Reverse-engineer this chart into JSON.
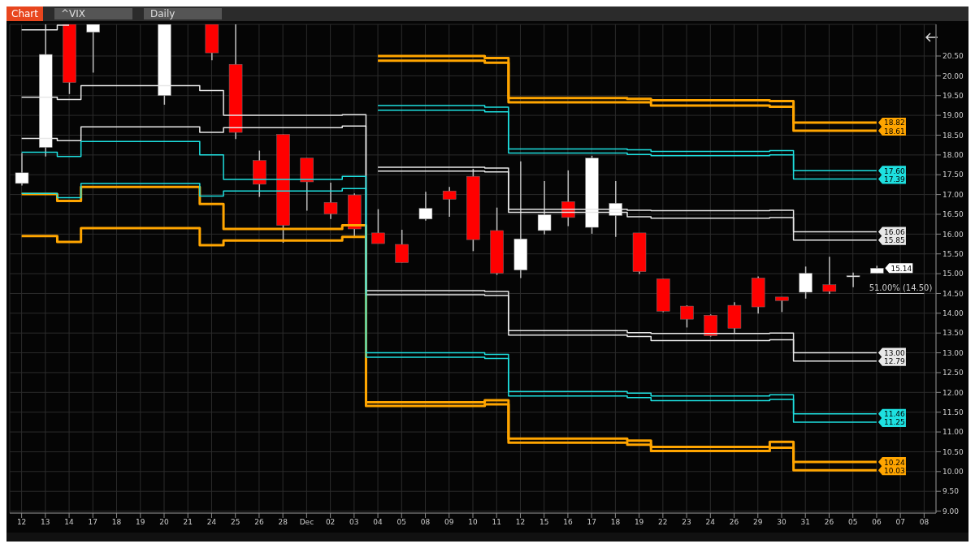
{
  "chart_data": {
    "type": "candlestick",
    "title": "^VIX",
    "subtitle": "Daily",
    "annotations": [
      "Chart"
    ],
    "ref_lines": [
      {
        "axis": "y",
        "value": 14.5,
        "label": "51.00% (14.50)",
        "color": "#cccccc"
      }
    ],
    "categories": [
      "12",
      "13",
      "14",
      "17",
      "18",
      "19",
      "20",
      "21",
      "24",
      "25",
      "26",
      "28",
      "Dec",
      "02",
      "03",
      "04",
      "05",
      "08",
      "09",
      "10",
      "11",
      "12",
      "15",
      "16",
      "17",
      "18",
      "19",
      "22",
      "23",
      "24",
      "26",
      "29",
      "30",
      "31",
      "26",
      "05",
      "06",
      "07",
      "08"
    ],
    "ohlc": [
      [
        17.28,
        18.05,
        17.23,
        17.55
      ],
      [
        18.19,
        21.3,
        17.96,
        20.54
      ],
      [
        21.3,
        21.3,
        19.54,
        19.83
      ],
      [
        21.1,
        21.3,
        20.08,
        21.3
      ],
      null,
      null,
      [
        19.5,
        21.3,
        19.27,
        21.3
      ],
      null,
      [
        21.3,
        21.3,
        20.39,
        20.58
      ],
      [
        20.29,
        21.3,
        18.4,
        18.57
      ],
      [
        17.86,
        18.11,
        16.94,
        17.26
      ],
      [
        18.52,
        18.52,
        15.78,
        16.22
      ],
      [
        17.92,
        17.92,
        16.59,
        17.32
      ],
      [
        16.8,
        17.3,
        16.38,
        16.51
      ],
      [
        16.99,
        17.03,
        15.93,
        16.13
      ],
      [
        16.03,
        16.63,
        15.76,
        15.76
      ],
      [
        15.74,
        16.11,
        15.28,
        15.28
      ],
      [
        16.38,
        17.07,
        16.34,
        16.65
      ],
      [
        17.09,
        17.19,
        16.44,
        16.88
      ],
      [
        17.46,
        17.65,
        15.57,
        15.86
      ],
      [
        16.09,
        16.67,
        14.97,
        15.01
      ],
      [
        15.09,
        17.84,
        14.89,
        15.88
      ],
      [
        16.09,
        17.34,
        15.99,
        16.49
      ],
      [
        16.82,
        17.61,
        16.2,
        16.42
      ],
      [
        16.17,
        17.98,
        16.01,
        17.92
      ],
      [
        16.47,
        17.34,
        15.93,
        16.78
      ],
      [
        16.03,
        16.03,
        14.99,
        15.05
      ],
      [
        14.87,
        14.87,
        14.03,
        14.05
      ],
      [
        14.18,
        14.2,
        13.64,
        13.85
      ],
      [
        13.95,
        13.97,
        13.41,
        13.43
      ],
      [
        14.2,
        14.28,
        13.49,
        13.62
      ],
      [
        14.89,
        14.93,
        13.99,
        14.16
      ],
      [
        14.41,
        14.41,
        14.03,
        14.32
      ],
      [
        14.53,
        15.18,
        14.37,
        15.01
      ],
      [
        14.72,
        15.43,
        14.49,
        14.55
      ],
      [
        14.95,
        15.03,
        14.66,
        14.95
      ],
      [
        15.01,
        15.2,
        15.01,
        15.14
      ],
      null,
      null
    ],
    "colors": [
      "#ffffff",
      "#ffffff",
      "#ff0000",
      "#ffffff",
      null,
      null,
      "#ffffff",
      null,
      "#ff0000",
      "#ff0000",
      "#ff0000",
      "#ff0000",
      "#ff0000",
      "#ff0000",
      "#ff0000",
      "#ff0000",
      "#ff0000",
      "#ffffff",
      "#ff0000",
      "#ff0000",
      "#ff0000",
      "#ffffff",
      "#ffffff",
      "#ff0000",
      "#ffffff",
      "#ffffff",
      "#ff0000",
      "#ff0000",
      "#ff0000",
      "#ff0000",
      "#ff0000",
      "#ff0000",
      "#ff0000",
      "#ffffff",
      "#ff0000",
      "#ffffff",
      "#ffffff",
      null,
      null
    ],
    "value_labels": [
      null,
      null,
      null,
      null,
      null,
      null,
      null,
      null,
      null,
      null,
      null,
      null,
      null,
      null,
      null,
      null,
      null,
      null,
      null,
      null,
      null,
      null,
      null,
      null,
      null,
      null,
      null,
      null,
      null,
      null,
      null,
      null,
      null,
      null,
      null,
      null,
      "15.14",
      null,
      null
    ],
    "series": [
      {
        "type": "step",
        "color": "#ffa500",
        "values": [
          null,
          null,
          null,
          null,
          null,
          null,
          null,
          null,
          null,
          null,
          null,
          null,
          null,
          null,
          null,
          20.5,
          20.5,
          20.5,
          20.5,
          20.5,
          20.45,
          19.44,
          19.44,
          19.44,
          19.44,
          19.44,
          19.42,
          19.38,
          19.38,
          19.38,
          19.38,
          19.38,
          19.36,
          18.82,
          18.82,
          18.82,
          18.82,
          null,
          null
        ],
        "value_labels": [
          null,
          null,
          null,
          null,
          null,
          null,
          null,
          null,
          null,
          null,
          null,
          null,
          null,
          null,
          null,
          null,
          null,
          null,
          null,
          null,
          null,
          null,
          null,
          null,
          null,
          null,
          null,
          null,
          null,
          null,
          null,
          null,
          null,
          null,
          null,
          null,
          "18.82",
          null,
          null
        ]
      },
      {
        "type": "step",
        "color": "#ffa500",
        "values": [
          null,
          null,
          null,
          null,
          null,
          null,
          null,
          null,
          null,
          null,
          null,
          null,
          null,
          null,
          null,
          20.38,
          20.38,
          20.38,
          20.38,
          20.38,
          20.33,
          19.33,
          19.33,
          19.33,
          19.33,
          19.33,
          19.33,
          19.25,
          19.25,
          19.25,
          19.25,
          19.25,
          19.22,
          18.61,
          18.61,
          18.61,
          18.61,
          null,
          null
        ],
        "value_labels": [
          null,
          null,
          null,
          null,
          null,
          null,
          null,
          null,
          null,
          null,
          null,
          null,
          null,
          null,
          null,
          null,
          null,
          null,
          null,
          null,
          null,
          null,
          null,
          null,
          null,
          null,
          null,
          null,
          null,
          null,
          null,
          null,
          null,
          null,
          null,
          null,
          "18.61",
          null,
          null
        ]
      },
      {
        "type": "step",
        "color": "#1ee0e0",
        "values": [
          null,
          null,
          null,
          null,
          null,
          null,
          null,
          null,
          null,
          null,
          null,
          null,
          null,
          null,
          null,
          19.25,
          19.25,
          19.25,
          19.25,
          19.25,
          19.21,
          18.15,
          18.15,
          18.15,
          18.15,
          18.15,
          18.13,
          18.09,
          18.09,
          18.09,
          18.09,
          18.09,
          18.11,
          17.6,
          17.6,
          17.6,
          17.6,
          null,
          null
        ],
        "value_labels": [
          null,
          null,
          null,
          null,
          null,
          null,
          null,
          null,
          null,
          null,
          null,
          null,
          null,
          null,
          null,
          null,
          null,
          null,
          null,
          null,
          null,
          null,
          null,
          null,
          null,
          null,
          null,
          null,
          null,
          null,
          null,
          null,
          null,
          null,
          null,
          null,
          "17.60",
          null,
          null
        ]
      },
      {
        "type": "step",
        "color": "#1ee0e0",
        "values": [
          null,
          null,
          null,
          null,
          null,
          null,
          null,
          null,
          null,
          null,
          null,
          null,
          null,
          null,
          null,
          19.13,
          19.13,
          19.13,
          19.13,
          19.13,
          19.09,
          18.05,
          18.05,
          18.05,
          18.05,
          18.05,
          18.01,
          17.98,
          17.98,
          17.98,
          17.98,
          17.98,
          18.0,
          17.39,
          17.39,
          17.39,
          17.39,
          null,
          null
        ],
        "value_labels": [
          null,
          null,
          null,
          null,
          null,
          null,
          null,
          null,
          null,
          null,
          null,
          null,
          null,
          null,
          null,
          null,
          null,
          null,
          null,
          null,
          null,
          null,
          null,
          null,
          null,
          null,
          null,
          null,
          null,
          null,
          null,
          null,
          null,
          null,
          null,
          null,
          "17.39",
          null,
          null
        ]
      },
      {
        "type": "step",
        "color": "#e8e8e8",
        "values": [
          21.16,
          21.16,
          21.28,
          null,
          null,
          null,
          null,
          null,
          null,
          null,
          null,
          null,
          null,
          null,
          null,
          17.69,
          17.69,
          17.69,
          17.69,
          17.69,
          17.67,
          16.63,
          16.63,
          16.63,
          16.63,
          16.63,
          16.6,
          16.59,
          16.59,
          16.59,
          16.59,
          16.59,
          16.6,
          16.06,
          16.06,
          16.06,
          16.06,
          null,
          null
        ],
        "value_labels": [
          null,
          null,
          null,
          null,
          null,
          null,
          null,
          null,
          null,
          null,
          null,
          null,
          null,
          null,
          null,
          null,
          null,
          null,
          null,
          null,
          null,
          null,
          null,
          null,
          null,
          null,
          null,
          null,
          null,
          null,
          null,
          null,
          null,
          null,
          null,
          null,
          "16.06",
          null,
          null
        ]
      },
      {
        "type": "step",
        "color": "#e8e8e8",
        "values": [
          null,
          null,
          null,
          null,
          null,
          null,
          null,
          null,
          null,
          null,
          null,
          null,
          null,
          null,
          null,
          17.59,
          17.59,
          17.59,
          17.59,
          17.59,
          17.57,
          16.55,
          16.55,
          16.55,
          16.55,
          16.55,
          16.44,
          16.4,
          16.4,
          16.4,
          16.4,
          16.4,
          16.42,
          15.85,
          15.85,
          15.85,
          15.85,
          null,
          null
        ],
        "value_labels": [
          null,
          null,
          null,
          null,
          null,
          null,
          null,
          null,
          null,
          null,
          null,
          null,
          null,
          null,
          null,
          null,
          null,
          null,
          null,
          null,
          null,
          null,
          null,
          null,
          null,
          null,
          null,
          null,
          null,
          null,
          null,
          null,
          null,
          null,
          null,
          null,
          "15.85",
          null,
          null
        ]
      },
      {
        "type": "step",
        "color": "#e8e8e8",
        "values": [
          19.46,
          19.46,
          19.4,
          19.75,
          19.75,
          19.75,
          19.75,
          19.75,
          19.63,
          19.0,
          19.0,
          19.0,
          19.0,
          19.0,
          19.02,
          14.57,
          14.57,
          14.57,
          14.57,
          14.57,
          14.55,
          13.56,
          13.56,
          13.56,
          13.56,
          13.56,
          13.51,
          13.49,
          13.49,
          13.49,
          13.49,
          13.49,
          13.5,
          13.0,
          13.0,
          13.0,
          13.0,
          null,
          null
        ],
        "value_labels": [
          null,
          null,
          null,
          null,
          null,
          null,
          null,
          null,
          null,
          null,
          null,
          null,
          null,
          null,
          null,
          null,
          null,
          null,
          null,
          null,
          null,
          null,
          null,
          null,
          null,
          null,
          null,
          null,
          null,
          null,
          null,
          null,
          null,
          null,
          null,
          null,
          "13.00",
          null,
          null
        ]
      },
      {
        "type": "step",
        "color": "#e8e8e8",
        "values": [
          18.42,
          18.42,
          18.36,
          18.71,
          18.71,
          18.71,
          18.71,
          18.71,
          18.57,
          18.69,
          18.69,
          18.69,
          18.69,
          18.69,
          18.73,
          14.47,
          14.47,
          14.47,
          14.47,
          14.47,
          14.45,
          13.45,
          13.45,
          13.45,
          13.45,
          13.45,
          13.41,
          13.31,
          13.31,
          13.31,
          13.31,
          13.31,
          13.33,
          12.79,
          12.79,
          12.79,
          12.79,
          null,
          null
        ],
        "value_labels": [
          null,
          null,
          null,
          null,
          null,
          null,
          null,
          null,
          null,
          null,
          null,
          null,
          null,
          null,
          null,
          null,
          null,
          null,
          null,
          null,
          null,
          null,
          null,
          null,
          null,
          null,
          null,
          null,
          null,
          null,
          null,
          null,
          null,
          null,
          null,
          null,
          "12.79",
          null,
          null
        ]
      },
      {
        "type": "step",
        "color": "#1ee0e0",
        "values": [
          18.07,
          18.07,
          17.96,
          18.34,
          18.34,
          18.34,
          18.34,
          18.34,
          18.0,
          17.38,
          17.38,
          17.38,
          17.38,
          17.38,
          17.46,
          13.0,
          13.0,
          13.0,
          13.0,
          13.0,
          12.96,
          12.02,
          12.02,
          12.02,
          12.02,
          12.02,
          11.98,
          11.91,
          11.91,
          11.91,
          11.91,
          11.91,
          11.94,
          11.46,
          11.46,
          11.46,
          11.46,
          null,
          null
        ],
        "value_labels": [
          null,
          null,
          null,
          null,
          null,
          null,
          null,
          null,
          null,
          null,
          null,
          null,
          null,
          null,
          null,
          null,
          null,
          null,
          null,
          null,
          null,
          null,
          null,
          null,
          null,
          null,
          null,
          null,
          null,
          null,
          null,
          null,
          null,
          null,
          null,
          null,
          "11.46",
          null,
          null
        ]
      },
      {
        "type": "step",
        "color": "#1ee0e0",
        "values": [
          17.03,
          17.03,
          16.92,
          17.28,
          17.28,
          17.28,
          17.28,
          17.28,
          16.96,
          17.09,
          17.09,
          17.09,
          17.09,
          17.09,
          17.15,
          12.89,
          12.89,
          12.89,
          12.89,
          12.89,
          12.86,
          11.91,
          11.91,
          11.91,
          11.91,
          11.91,
          11.87,
          11.79,
          11.79,
          11.79,
          11.79,
          11.79,
          11.82,
          11.25,
          11.25,
          11.25,
          11.25,
          null,
          null
        ],
        "value_labels": [
          null,
          null,
          null,
          null,
          null,
          null,
          null,
          null,
          null,
          null,
          null,
          null,
          null,
          null,
          null,
          null,
          null,
          null,
          null,
          null,
          null,
          null,
          null,
          null,
          null,
          null,
          null,
          null,
          null,
          null,
          null,
          null,
          null,
          null,
          null,
          null,
          "11.25",
          null,
          null
        ]
      },
      {
        "type": "step",
        "color": "#ffa500",
        "values": [
          17.01,
          17.01,
          16.84,
          17.19,
          17.19,
          17.19,
          17.19,
          17.19,
          16.76,
          16.13,
          16.13,
          16.13,
          16.13,
          16.13,
          16.22,
          11.75,
          11.75,
          11.75,
          11.75,
          11.75,
          11.8,
          10.83,
          10.83,
          10.83,
          10.83,
          10.83,
          10.78,
          10.62,
          10.62,
          10.62,
          10.62,
          10.62,
          10.75,
          10.24,
          10.24,
          10.24,
          10.24,
          null,
          null
        ],
        "value_labels": [
          null,
          null,
          null,
          null,
          null,
          null,
          null,
          null,
          null,
          null,
          null,
          null,
          null,
          null,
          null,
          null,
          null,
          null,
          null,
          null,
          null,
          null,
          null,
          null,
          null,
          null,
          null,
          null,
          null,
          null,
          null,
          null,
          null,
          null,
          null,
          null,
          "10.24",
          null,
          null
        ]
      },
      {
        "type": "step",
        "color": "#ffa500",
        "values": [
          15.95,
          15.95,
          15.8,
          16.15,
          16.15,
          16.15,
          16.15,
          16.15,
          15.72,
          15.84,
          15.84,
          15.84,
          15.84,
          15.84,
          15.93,
          11.66,
          11.66,
          11.66,
          11.66,
          11.66,
          11.7,
          10.73,
          10.73,
          10.73,
          10.73,
          10.73,
          10.68,
          10.52,
          10.52,
          10.52,
          10.52,
          10.52,
          10.6,
          10.03,
          10.03,
          10.03,
          10.03,
          null,
          null
        ],
        "value_labels": [
          null,
          null,
          null,
          null,
          null,
          null,
          null,
          null,
          null,
          null,
          null,
          null,
          null,
          null,
          null,
          null,
          null,
          null,
          null,
          null,
          null,
          null,
          null,
          null,
          null,
          null,
          null,
          null,
          null,
          null,
          null,
          null,
          null,
          null,
          null,
          null,
          "10.03",
          null,
          null
        ]
      }
    ],
    "ylim": [
      8.95,
      21.3
    ],
    "yticks": [
      {
        "value": 9,
        "label": "9.00"
      },
      {
        "value": 9.5,
        "label": "9.50"
      },
      {
        "value": 10,
        "label": "10.00"
      },
      {
        "value": 10.5,
        "label": "10.50"
      },
      {
        "value": 11,
        "label": "11.00"
      },
      {
        "value": 11.5,
        "label": "11.50"
      },
      {
        "value": 12,
        "label": "12.00"
      },
      {
        "value": 12.5,
        "label": "12.50"
      },
      {
        "value": 13,
        "label": "13.00"
      },
      {
        "value": 13.5,
        "label": "13.50"
      },
      {
        "value": 14,
        "label": "14.00"
      },
      {
        "value": 14.5,
        "label": "14.50"
      },
      {
        "value": 15,
        "label": "15.00"
      },
      {
        "value": 15.5,
        "label": "15.50"
      },
      {
        "value": 16,
        "label": "16.00"
      },
      {
        "value": 16.5,
        "label": "16.50"
      },
      {
        "value": 17,
        "label": "17.00"
      },
      {
        "value": 17.5,
        "label": "17.50"
      },
      {
        "value": 18,
        "label": "18.00"
      },
      {
        "value": 18.5,
        "label": "18.50"
      },
      {
        "value": 19,
        "label": "19.00"
      },
      {
        "value": 19.5,
        "label": "19.50"
      },
      {
        "value": 20,
        "label": "20.00"
      },
      {
        "value": 20.5,
        "label": "20.50"
      }
    ],
    "grid": true
  }
}
